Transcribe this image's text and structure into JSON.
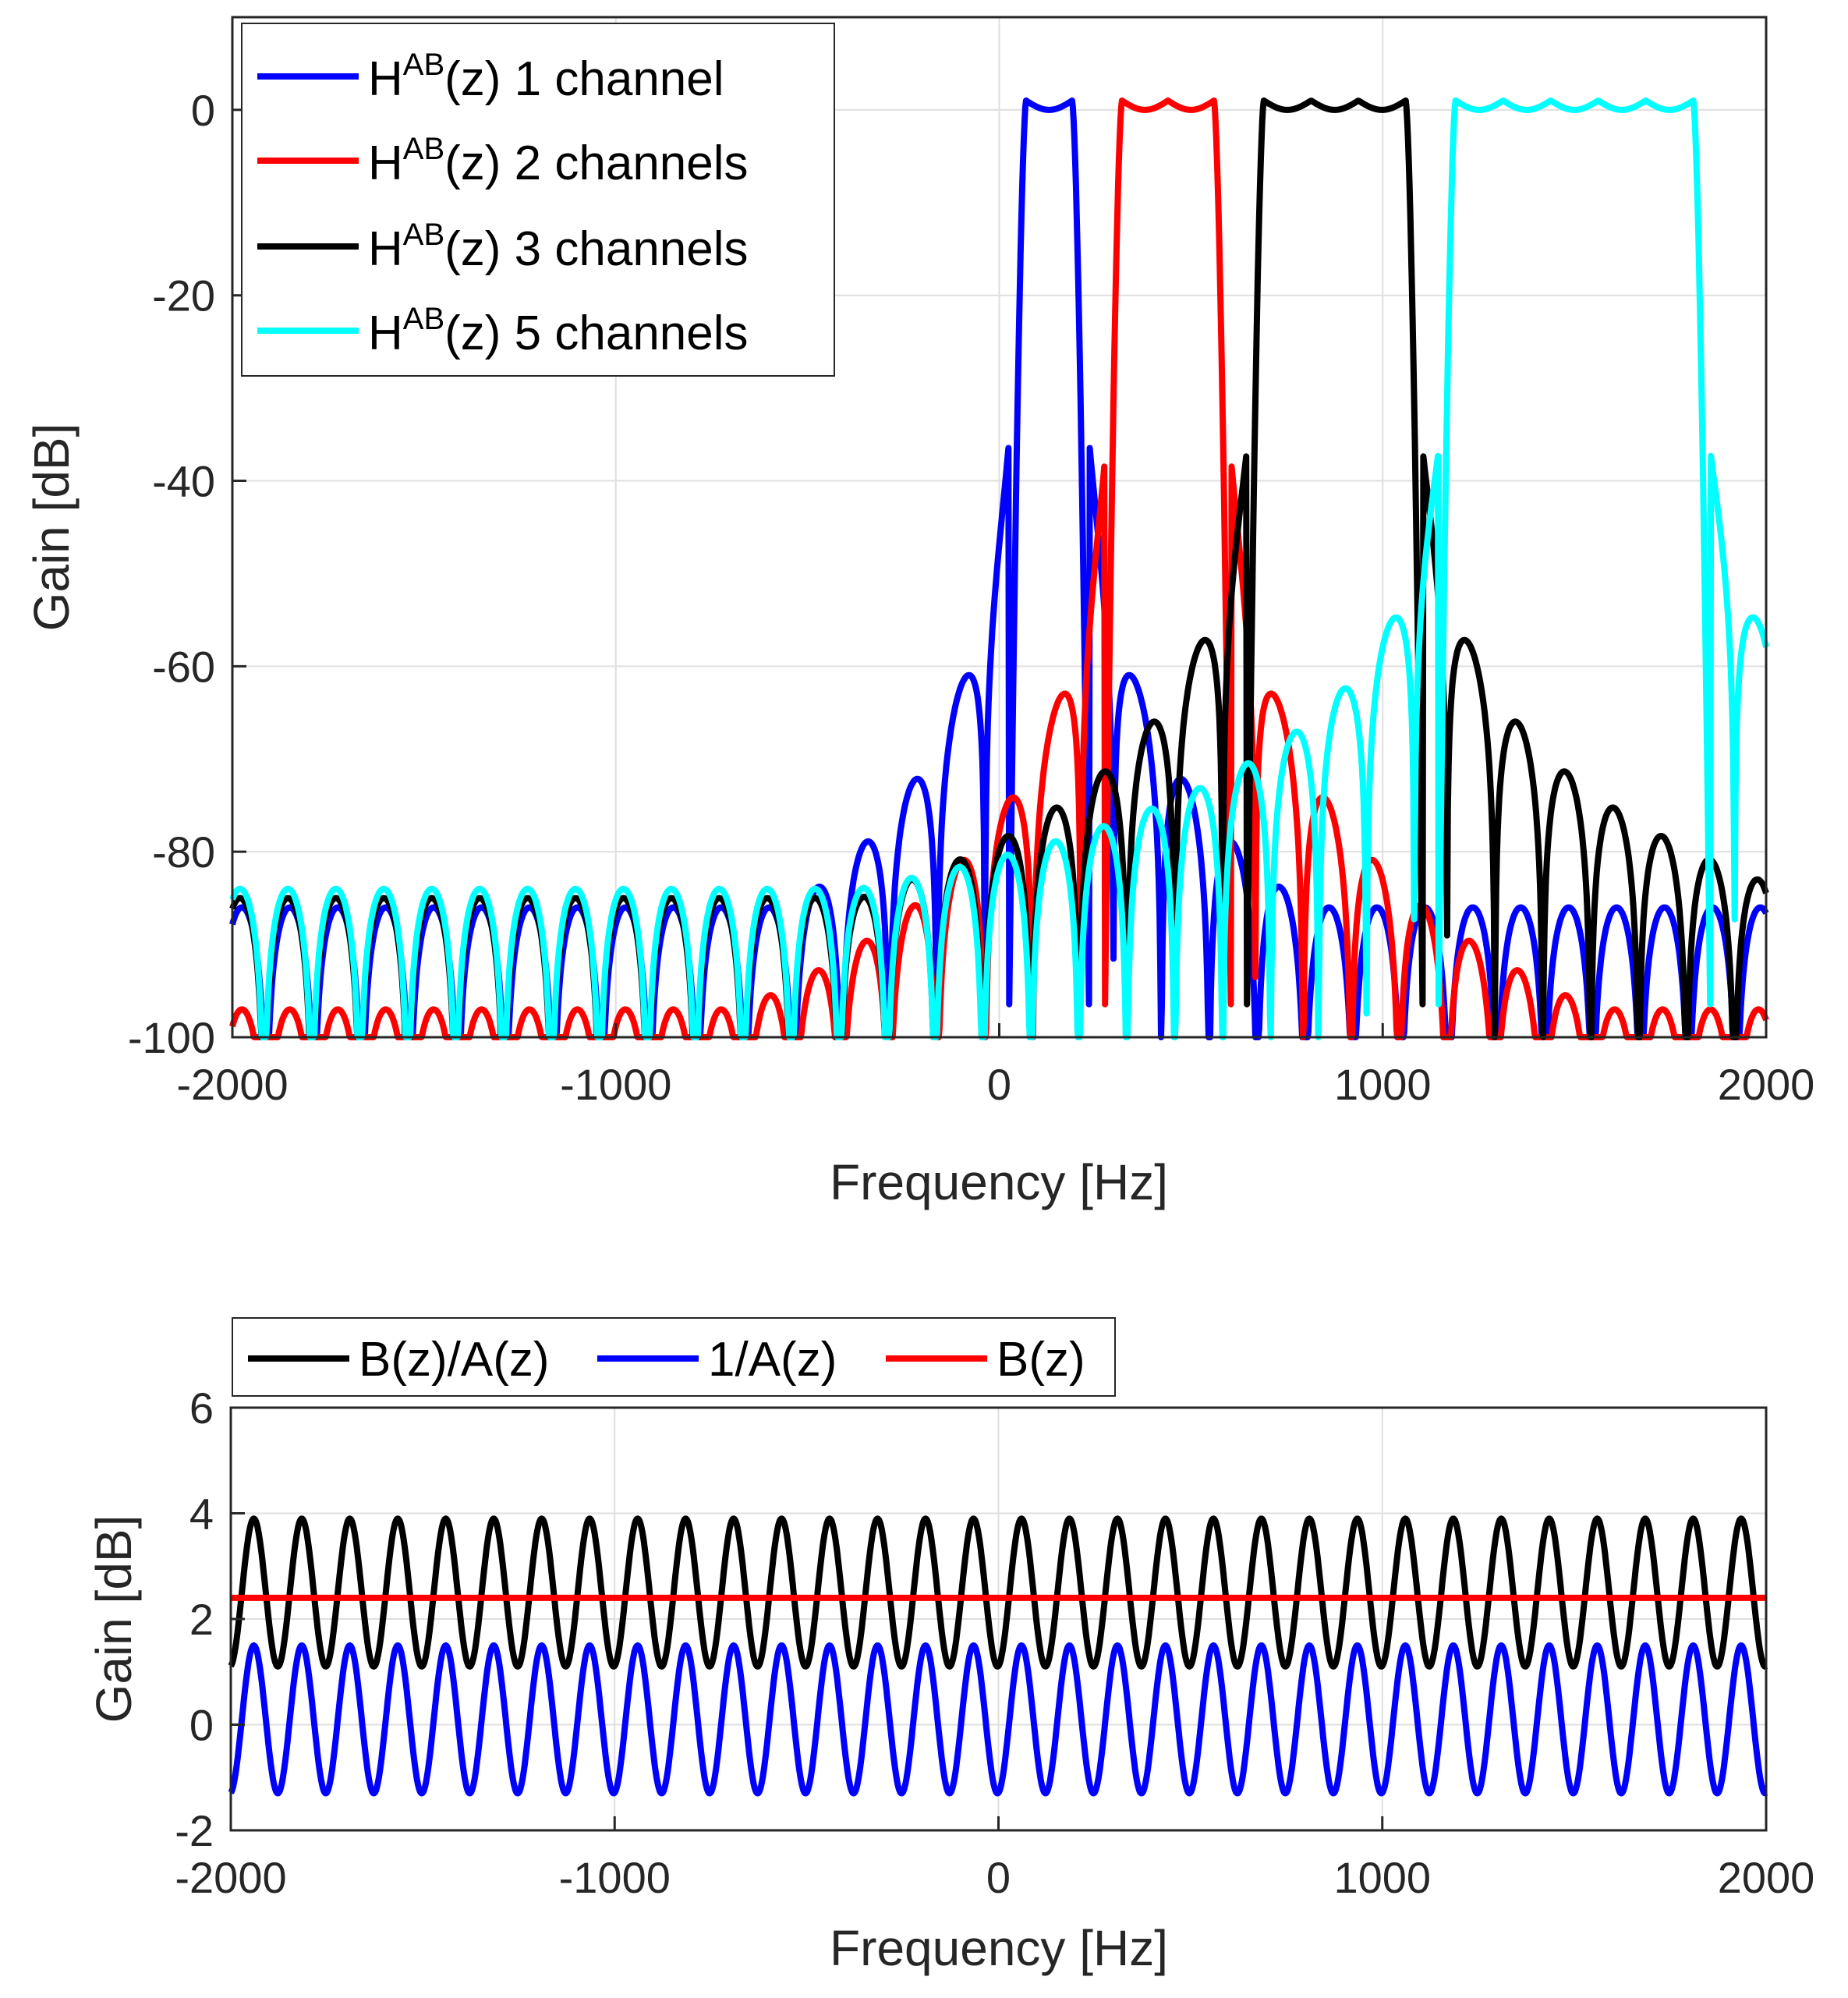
{
  "chart_data": [
    {
      "type": "line",
      "xlabel": "Frequency [Hz]",
      "ylabel": "Gain [dB]",
      "xlim": [
        -2000,
        2000
      ],
      "ylim": [
        -100,
        10
      ],
      "xticks": [
        -2000,
        -1000,
        0,
        1000,
        2000
      ],
      "yticks": [
        0,
        -20,
        -40,
        -60,
        -80,
        -100
      ],
      "grid": true,
      "legend": {
        "placement": "top-left"
      },
      "series": [
        {
          "name": "1 channel",
          "label_main": "H",
          "label_sup": "AB",
          "label_rest": "(z) 1 channel",
          "color": "#0000ff",
          "kind": "bandpass",
          "band": [
            70,
            190
          ],
          "ripples": 1,
          "sidelobe_peak": -36,
          "sidelobe_spacing": 125,
          "sidelobe_decay": 1.0,
          "sidelobe_floor": -86
        },
        {
          "name": "2 channels",
          "label_main": "H",
          "label_sup": "AB",
          "label_rest": "(z) 2 channels",
          "color": "#ff0000",
          "kind": "bandpass",
          "band": [
            320,
            560
          ],
          "ripples": 2,
          "sidelobe_peak": -38,
          "sidelobe_spacing": 125,
          "sidelobe_decay": 1.0,
          "sidelobe_floor": -97
        },
        {
          "name": "3 channels",
          "label_main": "H",
          "label_sup": "AB",
          "label_rest": "(z) 3 channels",
          "color": "#000000",
          "kind": "bandpass",
          "band": [
            690,
            1060
          ],
          "ripples": 3,
          "sidelobe_peak": -37,
          "sidelobe_spacing": 125,
          "sidelobe_decay": 0.8,
          "sidelobe_floor": -85
        },
        {
          "name": "5 channels",
          "label_main": "H",
          "label_sup": "AB",
          "label_rest": "(z) 5 channels",
          "color": "#00ffff",
          "kind": "bandpass",
          "band": [
            1190,
            1810
          ],
          "ripples": 5,
          "sidelobe_peak": -37,
          "sidelobe_spacing": 125,
          "sidelobe_decay": 0.7,
          "sidelobe_floor": -84
        }
      ]
    },
    {
      "type": "line",
      "xlabel": "Frequency [Hz]",
      "ylabel": "Gain [dB]",
      "xlim": [
        -2000,
        2000
      ],
      "ylim": [
        -2,
        6
      ],
      "xticks": [
        -2000,
        -1000,
        0,
        1000,
        2000
      ],
      "yticks": [
        6,
        4,
        2,
        0,
        -2
      ],
      "grid": true,
      "legend": {
        "placement": "top-outside"
      },
      "series": [
        {
          "name": "B(z)/A(z)",
          "color": "#000000",
          "kind": "ripple",
          "center": 2.5,
          "amplitude": 1.4,
          "period": 125,
          "phase_x": -1940
        },
        {
          "name": "1/A(z)",
          "color": "#0000ff",
          "kind": "ripple",
          "center": 0.1,
          "amplitude": 1.4,
          "period": 125,
          "phase_x": -1940
        },
        {
          "name": "B(z)",
          "color": "#ff0000",
          "kind": "flat",
          "value": 2.4
        }
      ]
    }
  ]
}
